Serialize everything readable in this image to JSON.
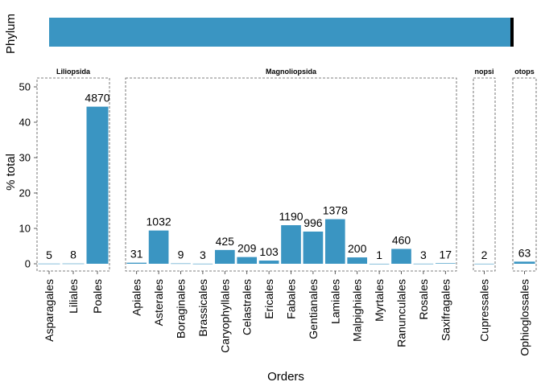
{
  "chart_data": {
    "type": "bar",
    "xlabel": "Orders",
    "ylabel": "% total",
    "ylim": [
      0,
      52
    ],
    "yticks": [
      0,
      10,
      20,
      30,
      40,
      50
    ],
    "grid": false,
    "bar_color": "#3a95c2",
    "phylum_strip": {
      "label": "Phylum",
      "segments": [
        {
          "color": "#3a95c2",
          "share": 0.993
        },
        {
          "color": "#000000",
          "share": 0.007
        }
      ]
    },
    "facets": [
      {
        "title": "Liliopsida",
        "bars": [
          {
            "category": "Asparagales",
            "value": 0.05,
            "label": "5"
          },
          {
            "category": "Liliales",
            "value": 0.07,
            "label": "8"
          },
          {
            "category": "Poales",
            "value": 44.4,
            "label": "4870"
          }
        ]
      },
      {
        "title": "Magnoliopsida",
        "bars": [
          {
            "category": "Apiales",
            "value": 0.3,
            "label": "31"
          },
          {
            "category": "Asterales",
            "value": 9.4,
            "label": "1032"
          },
          {
            "category": "Boraginales",
            "value": 0.1,
            "label": "9"
          },
          {
            "category": "Brassicales",
            "value": 0.03,
            "label": "3"
          },
          {
            "category": "Caryophyllales",
            "value": 3.9,
            "label": "425"
          },
          {
            "category": "Celastrales",
            "value": 1.9,
            "label": "209"
          },
          {
            "category": "Ericales",
            "value": 0.9,
            "label": "103"
          },
          {
            "category": "Fabales",
            "value": 10.9,
            "label": "1190"
          },
          {
            "category": "Gentianales",
            "value": 9.1,
            "label": "996"
          },
          {
            "category": "Lamiales",
            "value": 12.6,
            "label": "1378"
          },
          {
            "category": "Malpighiales",
            "value": 1.8,
            "label": "200"
          },
          {
            "category": "Myrtales",
            "value": 0.01,
            "label": "1"
          },
          {
            "category": "Ranunculales",
            "value": 4.2,
            "label": "460"
          },
          {
            "category": "Rosales",
            "value": 0.03,
            "label": "3"
          },
          {
            "category": "Saxifragales",
            "value": 0.15,
            "label": "17"
          }
        ]
      },
      {
        "title": "nopsi",
        "bars": [
          {
            "category": "Cupressales",
            "value": 0.02,
            "label": "2"
          }
        ]
      },
      {
        "title": "otops",
        "bars": [
          {
            "category": "Ophioglossales",
            "value": 0.6,
            "label": "63"
          }
        ]
      }
    ]
  }
}
